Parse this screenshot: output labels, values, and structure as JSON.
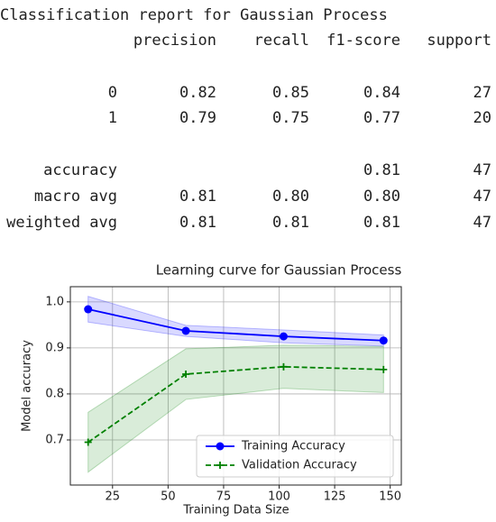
{
  "report": {
    "title": "Classification report for Gaussian Process",
    "columns": [
      "precision",
      "recall",
      "f1-score",
      "support"
    ],
    "class_rows": [
      {
        "label": "0",
        "cells": [
          "0.82",
          "0.85",
          "0.84",
          "27"
        ]
      },
      {
        "label": "1",
        "cells": [
          "0.79",
          "0.75",
          "0.77",
          "20"
        ]
      }
    ],
    "accuracy": {
      "label": "accuracy",
      "f1-score": "0.81",
      "support": "47"
    },
    "avg_rows": [
      {
        "label": "macro avg",
        "cells": [
          "0.81",
          "0.80",
          "0.80",
          "47"
        ]
      },
      {
        "label": "weighted avg",
        "cells": [
          "0.81",
          "0.81",
          "0.81",
          "47"
        ]
      }
    ]
  },
  "chart_data": {
    "type": "line",
    "title": "Learning curve for Gaussian Process",
    "xlabel": "Training Data Size",
    "ylabel": "Model accuracy",
    "x": [
      14,
      58,
      102,
      147
    ],
    "series": [
      {
        "name": "Training Accuracy",
        "color": "#0000ff",
        "marker": "circle",
        "dash": false,
        "values": [
          0.984,
          0.937,
          0.925,
          0.916
        ],
        "std": [
          0.028,
          0.012,
          0.014,
          0.012
        ]
      },
      {
        "name": "Validation Accuracy",
        "color": "#008000",
        "marker": "plus",
        "dash": true,
        "values": [
          0.695,
          0.843,
          0.859,
          0.853
        ],
        "std": [
          0.065,
          0.055,
          0.047,
          0.05
        ]
      }
    ],
    "xlim": [
      6,
      155
    ],
    "xticks": [
      25,
      50,
      75,
      100,
      125,
      150
    ],
    "ylim": [
      0.602,
      1.033
    ],
    "yticks": [
      0.7,
      0.8,
      0.9,
      {
        "value": 1.0,
        "label": "1.0"
      }
    ],
    "grid": true,
    "legend": "lower right"
  }
}
